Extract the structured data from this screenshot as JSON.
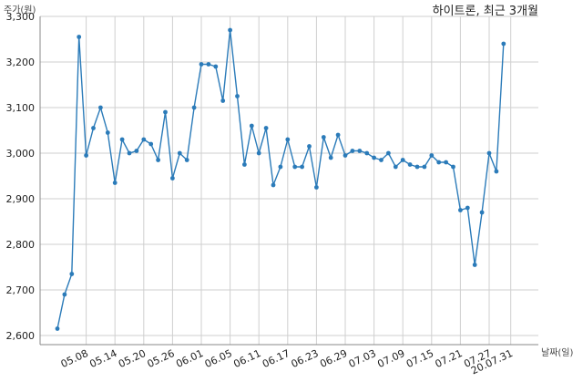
{
  "chart_data": {
    "type": "line",
    "title": "하이트론, 최근 3개월",
    "ylabel": "주가(원)",
    "xlabel": "날짜(일)",
    "ylim": [
      2580,
      3300
    ],
    "yticks": [
      2600,
      2700,
      2800,
      2900,
      3000,
      3100,
      3200,
      3300
    ],
    "ytick_labels": [
      "2,600",
      "2,700",
      "2,800",
      "2,900",
      "3,000",
      "3,100",
      "3,200",
      "3,300"
    ],
    "xtick_labels": [
      "05.08",
      "05.14",
      "05.20",
      "05.26",
      "06.01",
      "06.05",
      "06.11",
      "06.17",
      "06.23",
      "06.29",
      "07.03",
      "07.09",
      "07.15",
      "07.21",
      "07.27",
      "20.07.31"
    ],
    "xtick_indices": [
      4,
      8,
      12,
      16,
      20,
      24,
      28,
      32,
      36,
      40,
      44,
      48,
      52,
      56,
      60,
      63
    ],
    "grid": true,
    "color": "#2b7bb9",
    "series": [
      {
        "values": [
          2615,
          2690,
          2735,
          3255,
          2995,
          3055,
          3100,
          3045,
          2935,
          3030,
          3000,
          3005,
          3030,
          3020,
          2985,
          3090,
          2945,
          3000,
          2985,
          3100,
          3195,
          3195,
          3190,
          3115,
          3270,
          3125,
          2975,
          3060,
          3000,
          3055,
          2930,
          2970,
          3030,
          2970,
          2970,
          3015,
          2925,
          3035,
          2990,
          3040,
          2995,
          3005,
          3005,
          3000,
          2990,
          2985,
          3000,
          2970,
          2985,
          2975,
          2970,
          2970,
          2995,
          2980,
          2980,
          2970,
          2875,
          2880,
          2755,
          2870,
          3000,
          2960,
          3240
        ]
      }
    ]
  }
}
